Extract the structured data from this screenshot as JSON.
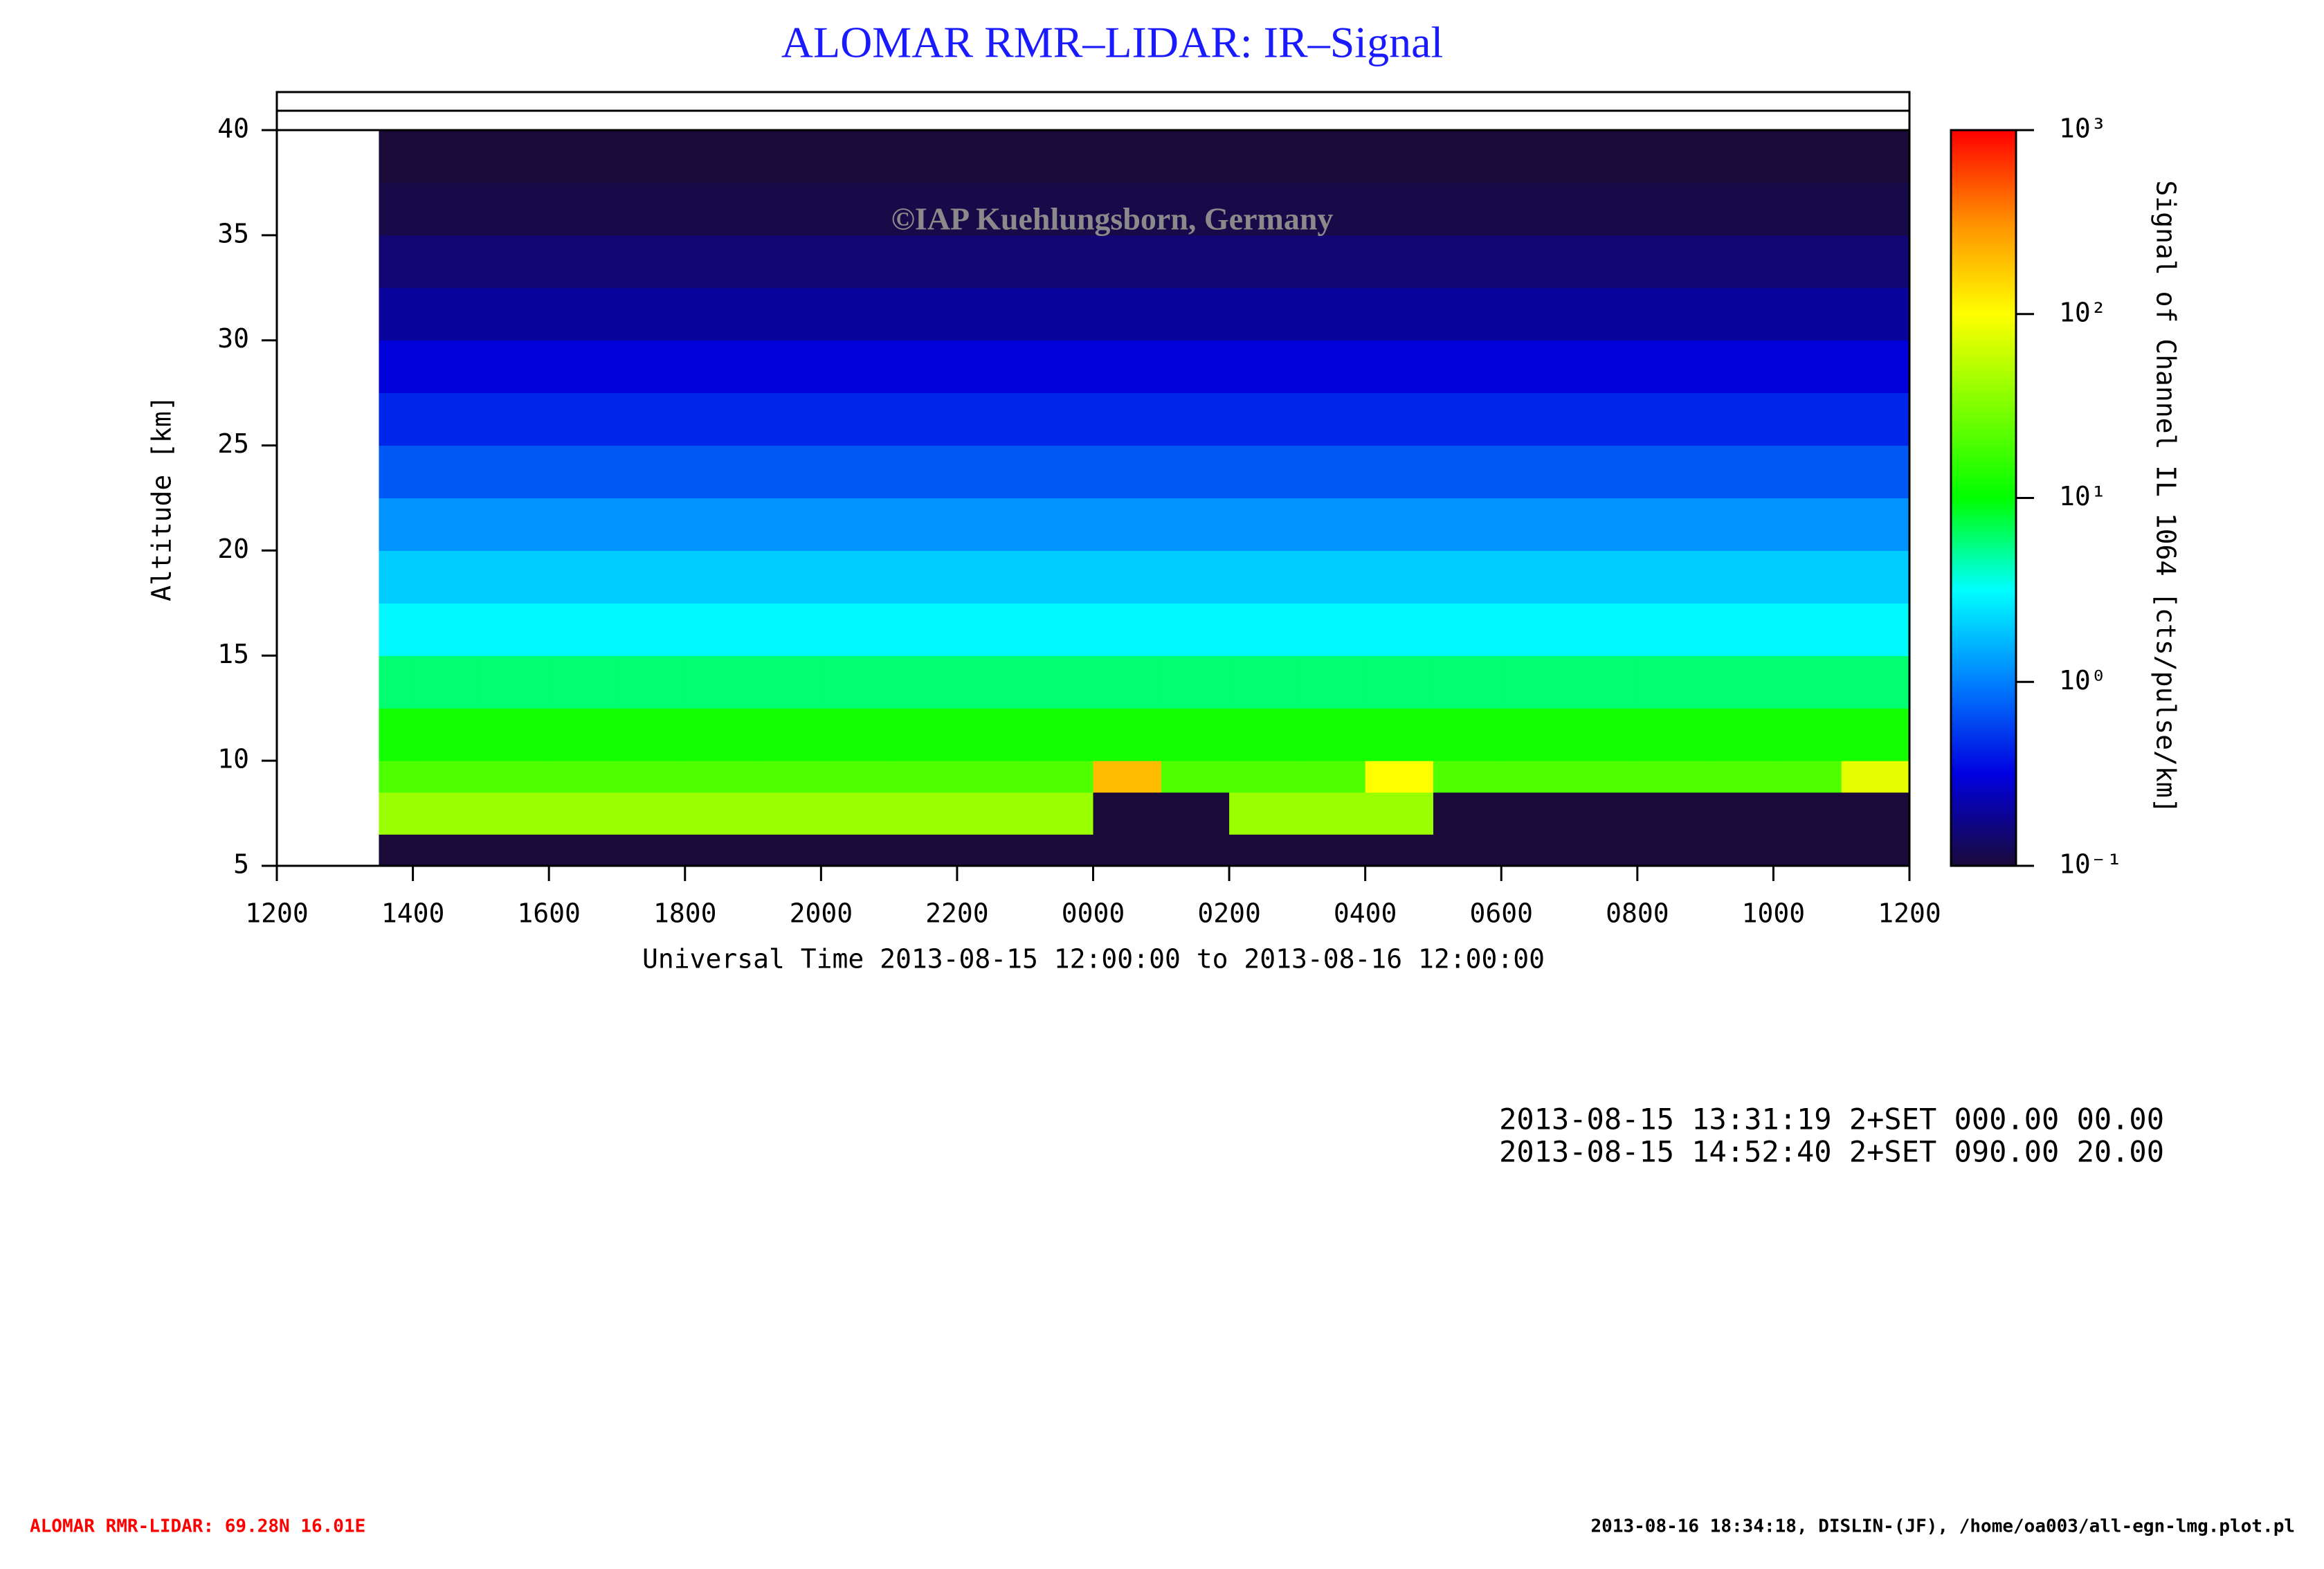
{
  "chart_data": {
    "type": "heatmap",
    "title": "ALOMAR RMR–LIDAR: IR–Signal",
    "watermark": "©IAP Kuehlungsborn, Germany",
    "x_label": "Universal Time 2013-08-15 12:00:00 to 2013-08-16 12:00:00",
    "y_label": "Altitude [km]",
    "colorbar_label": "Signal of Channel IL 1064 [cts/pulse/km]",
    "xlim": [
      12,
      36
    ],
    "xticks": [
      {
        "value": 12,
        "label": "1200"
      },
      {
        "value": 14,
        "label": "1400"
      },
      {
        "value": 16,
        "label": "1600"
      },
      {
        "value": 18,
        "label": "1800"
      },
      {
        "value": 20,
        "label": "2000"
      },
      {
        "value": 22,
        "label": "2200"
      },
      {
        "value": 24,
        "label": "0000"
      },
      {
        "value": 26,
        "label": "0200"
      },
      {
        "value": 28,
        "label": "0400"
      },
      {
        "value": 30,
        "label": "0600"
      },
      {
        "value": 32,
        "label": "0800"
      },
      {
        "value": 34,
        "label": "1000"
      },
      {
        "value": 36,
        "label": "1200"
      }
    ],
    "ylim": [
      5,
      40
    ],
    "yticks": [
      5,
      10,
      15,
      20,
      25,
      30,
      35,
      40
    ],
    "zlim": [
      0.1,
      1000
    ],
    "zscale": "log",
    "zticks": [
      {
        "value": 0.1,
        "label": "10⁻¹"
      },
      {
        "value": 1,
        "label": "10⁰"
      },
      {
        "value": 10,
        "label": "10¹"
      },
      {
        "value": 100,
        "label": "10²"
      },
      {
        "value": 1000,
        "label": "10³"
      }
    ],
    "colormap": [
      "#1a0a3a",
      "#0000e0",
      "#0080ff",
      "#00ffff",
      "#00ff00",
      "#80ff00",
      "#ffff00",
      "#ff9000",
      "#ff0000"
    ],
    "x_edges": [
      12,
      13.5,
      14,
      15,
      16,
      17,
      18,
      19,
      20,
      21,
      22,
      23,
      24,
      25,
      26,
      27,
      28,
      29,
      30,
      31,
      32,
      33,
      34,
      35,
      36
    ],
    "y_edges": [
      5,
      6.5,
      8.5,
      10,
      12.5,
      15,
      17.5,
      20,
      22.5,
      25,
      27.5,
      30,
      32.5,
      35,
      37.5,
      40
    ],
    "z": [
      [
        null,
        0.1,
        0.1,
        0.1,
        0.1,
        0.1,
        0.1,
        0.1,
        0.1,
        0.1,
        0.1,
        0.1,
        0.1,
        0.1,
        0.1,
        0.1,
        0.1,
        0.1,
        0.1,
        0.1,
        0.1,
        0.1,
        0.1,
        0.1
      ],
      [
        null,
        40,
        40,
        40,
        40,
        40,
        40,
        40,
        40,
        40,
        40,
        40,
        0.1,
        0.1,
        40,
        40,
        40,
        0.1,
        0.1,
        0.1,
        0.1,
        0.1,
        0.1,
        0.1
      ],
      [
        null,
        20,
        20,
        20,
        20,
        20,
        20,
        20,
        20,
        20,
        20,
        20,
        200,
        20,
        20,
        20,
        100,
        20,
        20,
        20,
        20,
        20,
        20,
        80
      ],
      [
        null,
        12,
        12,
        12,
        12,
        12,
        12,
        12,
        12,
        12,
        12,
        12,
        12,
        12,
        12,
        12,
        12,
        12,
        12,
        12,
        12,
        12,
        12,
        12
      ],
      [
        null,
        6,
        6,
        6,
        6,
        6,
        6,
        6,
        6,
        6,
        6,
        6,
        6,
        6,
        6,
        6,
        6,
        6,
        6,
        6,
        6,
        6,
        6,
        6
      ],
      [
        null,
        3,
        3,
        3,
        3,
        3,
        3,
        3,
        3,
        3,
        3,
        3,
        3,
        3,
        3,
        3,
        3,
        3,
        3,
        3,
        3,
        3,
        3,
        3
      ],
      [
        null,
        2,
        2,
        2,
        2,
        2,
        2,
        2,
        2,
        2,
        2,
        2,
        2,
        2,
        2,
        2,
        2,
        2,
        2,
        2,
        2,
        2,
        2,
        2
      ],
      [
        null,
        1.2,
        1.2,
        1.2,
        1.2,
        1.2,
        1.2,
        1.2,
        1.2,
        1.2,
        1.2,
        1.2,
        1.2,
        1.2,
        1.2,
        1.2,
        1.2,
        1.2,
        1.2,
        1.2,
        1.2,
        1.2,
        1.2,
        1.2
      ],
      [
        null,
        0.7,
        0.7,
        0.7,
        0.7,
        0.7,
        0.7,
        0.7,
        0.7,
        0.7,
        0.7,
        0.7,
        0.7,
        0.7,
        0.7,
        0.7,
        0.7,
        0.7,
        0.7,
        0.7,
        0.7,
        0.7,
        0.7,
        0.7
      ],
      [
        null,
        0.45,
        0.45,
        0.45,
        0.45,
        0.45,
        0.45,
        0.45,
        0.45,
        0.45,
        0.45,
        0.45,
        0.45,
        0.45,
        0.45,
        0.45,
        0.45,
        0.45,
        0.45,
        0.45,
        0.45,
        0.45,
        0.45,
        0.45
      ],
      [
        null,
        0.3,
        0.3,
        0.3,
        0.3,
        0.3,
        0.3,
        0.3,
        0.3,
        0.3,
        0.3,
        0.3,
        0.3,
        0.3,
        0.3,
        0.3,
        0.3,
        0.3,
        0.3,
        0.3,
        0.3,
        0.3,
        0.3,
        0.3
      ],
      [
        null,
        0.2,
        0.2,
        0.2,
        0.2,
        0.2,
        0.2,
        0.2,
        0.2,
        0.2,
        0.2,
        0.2,
        0.2,
        0.2,
        0.2,
        0.2,
        0.2,
        0.2,
        0.2,
        0.2,
        0.2,
        0.2,
        0.2,
        0.2
      ],
      [
        null,
        0.15,
        0.15,
        0.15,
        0.15,
        0.15,
        0.15,
        0.15,
        0.15,
        0.15,
        0.15,
        0.15,
        0.15,
        0.15,
        0.15,
        0.15,
        0.15,
        0.15,
        0.15,
        0.15,
        0.15,
        0.15,
        0.15,
        0.15
      ],
      [
        null,
        0.11,
        0.11,
        0.11,
        0.11,
        0.11,
        0.11,
        0.11,
        0.11,
        0.11,
        0.11,
        0.11,
        0.11,
        0.11,
        0.11,
        0.11,
        0.11,
        0.11,
        0.11,
        0.11,
        0.11,
        0.11,
        0.11,
        0.11
      ],
      [
        null,
        0.1,
        0.1,
        0.1,
        0.1,
        0.1,
        0.1,
        0.1,
        0.1,
        0.1,
        0.1,
        0.1,
        0.1,
        0.1,
        0.1,
        0.1,
        0.1,
        0.1,
        0.1,
        0.1,
        0.1,
        0.1,
        0.1,
        0.1
      ]
    ],
    "notes": [
      "2013-08-15 13:31:19 2+SET 000.00 00.00",
      "2013-08-15 14:52:40 2+SET 090.00 20.00"
    ],
    "footer_left": "ALOMAR RMR-LIDAR: 69.28N 16.01E",
    "footer_right": "2013-08-16 18:34:18, DISLIN-(JF), /home/oa003/all-egn-lmg.plot.pl"
  }
}
